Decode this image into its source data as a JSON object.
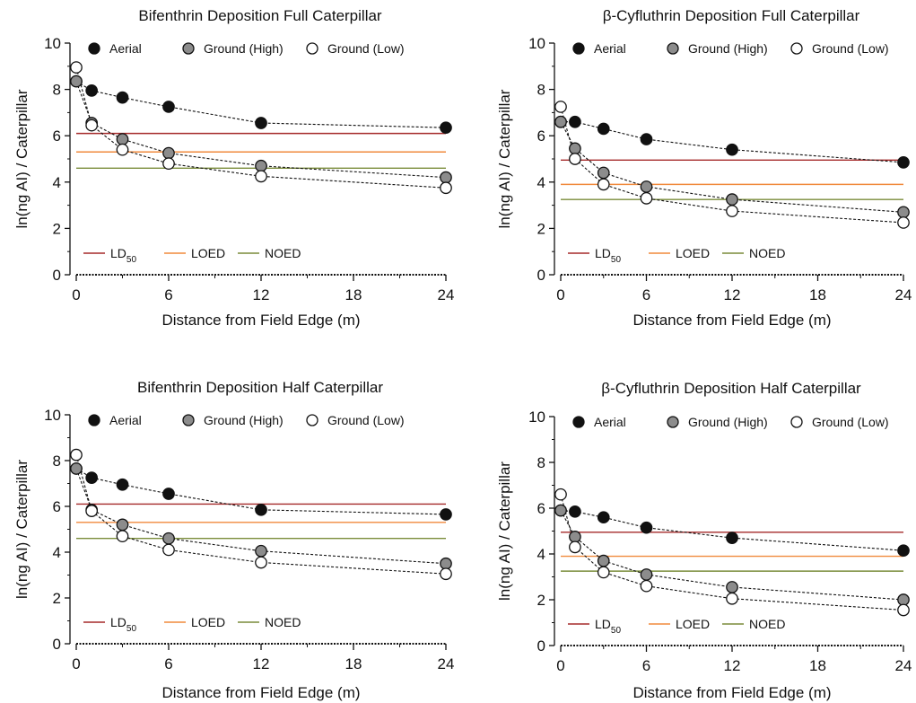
{
  "chart_data": [
    {
      "type": "line",
      "title": "Bifenthrin Deposition Full Caterpillar",
      "xlabel": "Distance from Field Edge (m)",
      "ylabel": "ln(ng AI) / Caterpillar",
      "xticks": [
        0,
        6,
        12,
        18,
        24
      ],
      "yticks": [
        0,
        2,
        4,
        6,
        8,
        10
      ],
      "xlim": [
        0,
        24
      ],
      "ylim": [
        0,
        10
      ],
      "x": [
        0,
        1,
        3,
        6,
        12,
        24
      ],
      "series": [
        {
          "name": "Aerial",
          "marker": "filled-black",
          "values": [
            8.35,
            7.95,
            7.65,
            7.25,
            6.55,
            6.35
          ]
        },
        {
          "name": "Ground (High)",
          "marker": "filled-gray",
          "values": [
            8.35,
            6.55,
            5.85,
            5.25,
            4.7,
            4.2
          ]
        },
        {
          "name": "Ground (Low)",
          "marker": "open",
          "values": [
            8.95,
            6.45,
            5.4,
            4.8,
            4.25,
            3.75
          ]
        }
      ],
      "reference_lines": [
        {
          "name": "LD50",
          "label_main": "LD",
          "label_sub": "50",
          "value": 6.1,
          "color": "#a52a2a"
        },
        {
          "name": "LOED",
          "label_main": "LOED",
          "label_sub": "",
          "value": 5.3,
          "color": "#f08a3c"
        },
        {
          "name": "NOED",
          "label_main": "NOED",
          "label_sub": "",
          "value": 4.6,
          "color": "#7a8c3a"
        }
      ]
    },
    {
      "type": "line",
      "title": "β-Cyfluthrin Deposition Full Caterpillar",
      "xlabel": "Distance from Field Edge (m)",
      "ylabel": "ln(ng AI) / Caterpillar",
      "xticks": [
        0,
        6,
        12,
        18,
        24
      ],
      "yticks": [
        0,
        2,
        4,
        6,
        8,
        10
      ],
      "xlim": [
        0,
        24
      ],
      "ylim": [
        0,
        10
      ],
      "x": [
        0,
        1,
        3,
        6,
        12,
        24
      ],
      "series": [
        {
          "name": "Aerial",
          "marker": "filled-black",
          "values": [
            6.6,
            6.6,
            6.3,
            5.85,
            5.4,
            4.85
          ]
        },
        {
          "name": "Ground (High)",
          "marker": "filled-gray",
          "values": [
            6.6,
            5.45,
            4.4,
            3.8,
            3.25,
            2.7
          ]
        },
        {
          "name": "Ground (Low)",
          "marker": "open",
          "values": [
            7.25,
            5.0,
            3.9,
            3.3,
            2.75,
            2.25
          ]
        }
      ],
      "reference_lines": [
        {
          "name": "LD50",
          "label_main": "LD",
          "label_sub": "50",
          "value": 4.95,
          "color": "#a52a2a"
        },
        {
          "name": "LOED",
          "label_main": "LOED",
          "label_sub": "",
          "value": 3.9,
          "color": "#f08a3c"
        },
        {
          "name": "NOED",
          "label_main": "NOED",
          "label_sub": "",
          "value": 3.25,
          "color": "#7a8c3a"
        }
      ]
    },
    {
      "type": "line",
      "title": "Bifenthrin Deposition Half Caterpillar",
      "xlabel": "Distance from Field Edge (m)",
      "ylabel": "ln(ng AI) / Caterpillar",
      "xticks": [
        0,
        6,
        12,
        18,
        24
      ],
      "yticks": [
        0,
        2,
        4,
        6,
        8,
        10
      ],
      "xlim": [
        0,
        24
      ],
      "ylim": [
        0,
        10
      ],
      "x": [
        0,
        1,
        3,
        6,
        12,
        24
      ],
      "series": [
        {
          "name": "Aerial",
          "marker": "filled-black",
          "values": [
            7.65,
            7.25,
            6.95,
            6.55,
            5.85,
            5.65
          ]
        },
        {
          "name": "Ground (High)",
          "marker": "filled-gray",
          "values": [
            7.65,
            5.85,
            5.2,
            4.6,
            4.05,
            3.5
          ]
        },
        {
          "name": "Ground (Low)",
          "marker": "open",
          "values": [
            8.25,
            5.8,
            4.7,
            4.1,
            3.55,
            3.05
          ]
        }
      ],
      "reference_lines": [
        {
          "name": "LD50",
          "label_main": "LD",
          "label_sub": "50",
          "value": 6.1,
          "color": "#a52a2a"
        },
        {
          "name": "LOED",
          "label_main": "LOED",
          "label_sub": "",
          "value": 5.3,
          "color": "#f08a3c"
        },
        {
          "name": "NOED",
          "label_main": "NOED",
          "label_sub": "",
          "value": 4.6,
          "color": "#7a8c3a"
        }
      ]
    },
    {
      "type": "line",
      "title": "β-Cyfluthrin Deposition Half Caterpillar",
      "xlabel": "Distance from Field Edge (m)",
      "ylabel": "ln(ng AI) / Caterpillar",
      "xticks": [
        0,
        6,
        12,
        18,
        24
      ],
      "yticks": [
        0,
        2,
        4,
        6,
        8,
        10
      ],
      "xlim": [
        0,
        24
      ],
      "ylim": [
        0,
        10
      ],
      "x": [
        0,
        1,
        3,
        6,
        12,
        24
      ],
      "series": [
        {
          "name": "Aerial",
          "marker": "filled-black",
          "values": [
            5.9,
            5.85,
            5.6,
            5.15,
            4.7,
            4.15
          ]
        },
        {
          "name": "Ground (High)",
          "marker": "filled-gray",
          "values": [
            5.9,
            4.75,
            3.7,
            3.1,
            2.55,
            2.0
          ]
        },
        {
          "name": "Ground (Low)",
          "marker": "open",
          "values": [
            6.6,
            4.3,
            3.2,
            2.6,
            2.05,
            1.55
          ]
        }
      ],
      "reference_lines": [
        {
          "name": "LD50",
          "label_main": "LD",
          "label_sub": "50",
          "value": 4.95,
          "color": "#a52a2a"
        },
        {
          "name": "LOED",
          "label_main": "LOED",
          "label_sub": "",
          "value": 3.9,
          "color": "#f08a3c"
        },
        {
          "name": "NOED",
          "label_main": "NOED",
          "label_sub": "",
          "value": 3.25,
          "color": "#7a8c3a"
        }
      ]
    }
  ]
}
